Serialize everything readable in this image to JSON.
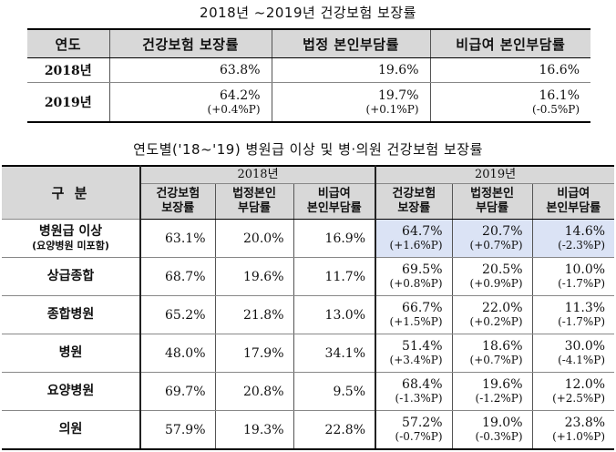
{
  "table1": {
    "title": "2018년 ~2019년  건강보험  보장률",
    "headers": [
      "연도",
      "건강보험  보장률",
      "법정  본인부담률",
      "비급여  본인부담률"
    ],
    "rows": [
      {
        "year": "2018년",
        "values": [
          "63.8%",
          "19.6%",
          "16.6%"
        ],
        "changes": [
          "",
          "",
          ""
        ]
      },
      {
        "year": "2019년",
        "values": [
          "64.2%",
          "19.7%",
          "16.1%"
        ],
        "changes": [
          "(+0.4%P)",
          "(+0.1%P)",
          "(-0.5%P)"
        ]
      }
    ]
  },
  "table2": {
    "title": "연도별('18~'19) 병원급 이상 및 병·의원 건강보험 보장률",
    "gubun": "구 분",
    "year_headers": [
      "2018년",
      "2019년"
    ],
    "sub_headers": [
      [
        "건강보험",
        "보장률"
      ],
      [
        "법정본인",
        "부담률"
      ],
      [
        "비급여",
        "본인부담률"
      ],
      [
        "건강보험",
        "보장률"
      ],
      [
        "법정본인",
        "부담률"
      ],
      [
        "비급여",
        "본인부담률"
      ]
    ],
    "rows": [
      {
        "name": "병원급 이상",
        "note": "(요양병원 미포함)",
        "y2018": [
          "63.1%",
          "20.0%",
          "16.9%"
        ],
        "y2019": [
          "64.7%",
          "20.7%",
          "14.6%"
        ],
        "chg": [
          "(+1.6%P)",
          "(+0.7%P)",
          "(-2.3%P)"
        ]
      },
      {
        "name": "상급종합",
        "note": "",
        "y2018": [
          "68.7%",
          "19.6%",
          "11.7%"
        ],
        "y2019": [
          "69.5%",
          "20.5%",
          "10.0%"
        ],
        "chg": [
          "(+0.8%P)",
          "(+0.9%P)",
          "(-1.7%P)"
        ]
      },
      {
        "name": "종합병원",
        "note": "",
        "y2018": [
          "65.2%",
          "21.8%",
          "13.0%"
        ],
        "y2019": [
          "66.7%",
          "22.0%",
          "11.3%"
        ],
        "chg": [
          "(+1.5%P)",
          "(+0.2%P)",
          "(-1.7%P)"
        ]
      },
      {
        "name": "병원",
        "note": "",
        "y2018": [
          "48.0%",
          "17.9%",
          "34.1%"
        ],
        "y2019": [
          "51.4%",
          "18.6%",
          "30.0%"
        ],
        "chg": [
          "(+3.4%P)",
          "(+0.7%P)",
          "(-4.1%P)"
        ]
      },
      {
        "name": "요양병원",
        "note": "",
        "y2018": [
          "69.7%",
          "20.8%",
          "9.5%"
        ],
        "y2019": [
          "68.4%",
          "19.6%",
          "12.0%"
        ],
        "chg": [
          "(-1.3%P)",
          "(-1.2%P)",
          "(+2.5%P)"
        ]
      },
      {
        "name": "의원",
        "note": "",
        "y2018": [
          "57.9%",
          "19.3%",
          "22.8%"
        ],
        "y2019": [
          "57.2%",
          "19.0%",
          "23.8%"
        ],
        "chg": [
          "(-0.7%P)",
          "(-0.3%P)",
          "(+1.0%P)"
        ]
      }
    ],
    "highlight_color": "#dbe3f5"
  }
}
